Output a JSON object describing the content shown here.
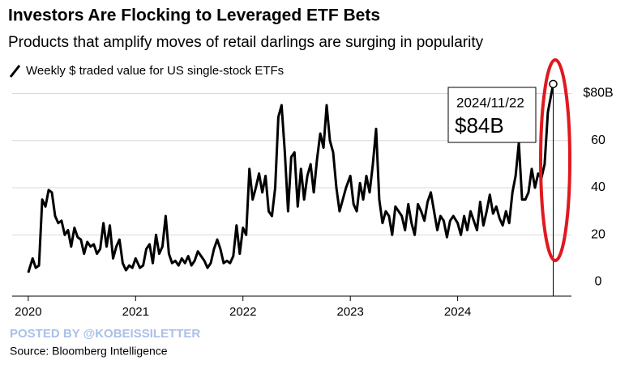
{
  "chart_data": {
    "type": "line",
    "title": "Investors Are Flocking to Leveraged ETF Bets",
    "subtitle": "Products that amplify moves of retail darlings are surging in popularity",
    "source": "Source: Bloomberg Intelligence",
    "watermark": "POSTED BY @KOBEISSILETTER",
    "annotation": {
      "date": "2024/11/22",
      "label": "$84B"
    },
    "x": [
      2020.0,
      2020.04,
      2020.07,
      2020.1,
      2020.13,
      2020.16,
      2020.19,
      2020.22,
      2020.25,
      2020.28,
      2020.31,
      2020.34,
      2020.37,
      2020.4,
      2020.43,
      2020.46,
      2020.49,
      2020.52,
      2020.55,
      2020.58,
      2020.61,
      2020.64,
      2020.67,
      2020.7,
      2020.73,
      2020.76,
      2020.79,
      2020.82,
      2020.85,
      2020.88,
      2020.91,
      2020.94,
      2020.97,
      2021.0,
      2021.04,
      2021.07,
      2021.1,
      2021.13,
      2021.16,
      2021.19,
      2021.22,
      2021.25,
      2021.28,
      2021.31,
      2021.34,
      2021.37,
      2021.4,
      2021.43,
      2021.46,
      2021.49,
      2021.52,
      2021.55,
      2021.58,
      2021.61,
      2021.64,
      2021.67,
      2021.7,
      2021.73,
      2021.76,
      2021.79,
      2021.82,
      2021.85,
      2021.88,
      2021.91,
      2021.94,
      2021.97,
      2022.0,
      2022.03,
      2022.06,
      2022.09,
      2022.12,
      2022.15,
      2022.18,
      2022.21,
      2022.24,
      2022.27,
      2022.3,
      2022.33,
      2022.36,
      2022.39,
      2022.42,
      2022.45,
      2022.48,
      2022.51,
      2022.54,
      2022.57,
      2022.6,
      2022.63,
      2022.66,
      2022.69,
      2022.72,
      2022.75,
      2022.78,
      2022.81,
      2022.84,
      2022.87,
      2022.9,
      2022.93,
      2022.96,
      2023.0,
      2023.03,
      2023.06,
      2023.09,
      2023.12,
      2023.15,
      2023.18,
      2023.21,
      2023.24,
      2023.27,
      2023.3,
      2023.33,
      2023.36,
      2023.39,
      2023.42,
      2023.45,
      2023.48,
      2023.51,
      2023.54,
      2023.57,
      2023.6,
      2023.63,
      2023.66,
      2023.69,
      2023.72,
      2023.75,
      2023.78,
      2023.81,
      2023.84,
      2023.87,
      2023.9,
      2023.93,
      2023.96,
      2024.0,
      2024.03,
      2024.06,
      2024.09,
      2024.12,
      2024.15,
      2024.18,
      2024.21,
      2024.24,
      2024.27,
      2024.3,
      2024.33,
      2024.36,
      2024.39,
      2024.42,
      2024.45,
      2024.48,
      2024.51,
      2024.54,
      2024.57,
      2024.6,
      2024.63,
      2024.66,
      2024.69,
      2024.72,
      2024.75,
      2024.78,
      2024.81,
      2024.84,
      2024.89
    ],
    "series": [
      {
        "name": "Weekly $ traded value for US single-stock ETFs",
        "color": "#000000",
        "values": [
          4,
          10,
          6,
          7,
          35,
          32,
          39,
          38,
          28,
          25,
          26,
          20,
          22,
          15,
          23,
          19,
          18,
          12,
          17,
          15,
          16,
          12,
          14,
          25,
          15,
          24,
          10,
          15,
          18,
          8,
          5,
          7,
          6,
          10,
          6,
          7,
          14,
          16,
          8,
          20,
          12,
          15,
          28,
          12,
          8,
          9,
          7,
          10,
          8,
          11,
          7,
          9,
          13,
          11,
          9,
          6,
          8,
          14,
          18,
          14,
          8,
          9,
          8,
          11,
          24,
          12,
          23,
          20,
          48,
          35,
          40,
          46,
          38,
          45,
          30,
          28,
          40,
          70,
          75,
          55,
          30,
          53,
          55,
          32,
          48,
          35,
          45,
          50,
          38,
          52,
          63,
          57,
          75,
          60,
          55,
          40,
          30,
          35,
          40,
          45,
          33,
          30,
          42,
          35,
          45,
          38,
          50,
          65,
          35,
          25,
          30,
          28,
          20,
          32,
          30,
          28,
          22,
          33,
          25,
          20,
          33,
          30,
          26,
          34,
          38,
          30,
          22,
          28,
          26,
          19,
          26,
          28,
          25,
          20,
          28,
          22,
          30,
          26,
          22,
          34,
          24,
          30,
          37,
          29,
          32,
          27,
          24,
          30,
          25,
          38,
          45,
          59,
          35,
          35,
          38,
          48,
          40,
          46,
          44,
          50,
          72,
          84
        ]
      }
    ],
    "xlim": [
      2019.85,
      2025.06
    ],
    "xticks": [
      2020,
      2021,
      2022,
      2023,
      2024
    ],
    "ylim": [
      -6,
      86
    ],
    "yticks": [
      0,
      20,
      40,
      60,
      {
        "value": 80,
        "label": "$80B"
      }
    ],
    "grid": true
  }
}
